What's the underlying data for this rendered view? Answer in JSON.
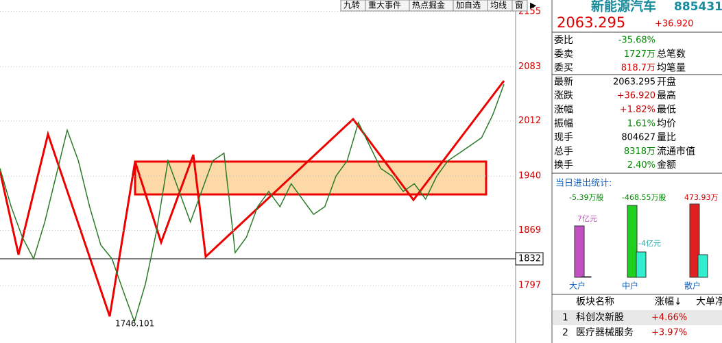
{
  "toolbar": [
    "九转",
    "重大事件",
    "热点掘金",
    "加自选",
    "均线",
    "窗"
  ],
  "quote": {
    "name": "新能源汽车",
    "code": "885431",
    "price": "2063.295",
    "change": "+36.920"
  },
  "rows": [
    {
      "label": "委比",
      "value": "-35.68%",
      "label2": ""
    },
    {
      "label": "委卖",
      "value": "1727万",
      "label2": "总笔数"
    },
    {
      "label": "委买",
      "value": "818.7万",
      "label2": "均笔量"
    },
    {
      "label": "最新",
      "value": "2063.295",
      "label2": "开盘"
    },
    {
      "label": "涨跌",
      "value": "+36.920",
      "label2": "最高"
    },
    {
      "label": "涨幅",
      "value": "+1.82%",
      "label2": "最低"
    },
    {
      "label": "振幅",
      "value": "1.61%",
      "label2": "均价"
    },
    {
      "label": "现手",
      "value": "804627",
      "label2": "量比"
    },
    {
      "label": "总手",
      "value": "8318万",
      "label2": "流通市值"
    },
    {
      "label": "换手",
      "value": "2.40%",
      "label2": "金额"
    }
  ],
  "flow": {
    "title": "当日进出统计:",
    "groups": [
      {
        "name": "大户",
        "volume": "-5.39万股",
        "amount": "7亿元"
      },
      {
        "name": "中户",
        "volume": "-468.55万股",
        "amount": "-4亿元"
      },
      {
        "name": "散户",
        "volume": "473.93万",
        "amount": ""
      }
    ]
  },
  "sectors": {
    "headers": [
      "板块名称",
      "涨幅↓",
      "大单净"
    ],
    "rows": [
      [
        "1",
        "科创次新股",
        "+4.66%"
      ],
      [
        "2",
        "医疗器械服务",
        "+3.97%"
      ]
    ]
  },
  "chart_data": {
    "type": "line",
    "ylim": [
      1722,
      2170
    ],
    "yticks": [
      2155,
      2083,
      2012,
      1940,
      1869,
      1797
    ],
    "marker": 1832,
    "low_label": "1746.101",
    "values": [
      1950,
      1900,
      1860,
      1832,
      1880,
      1940,
      2000,
      1960,
      1900,
      1850,
      1832,
      1790,
      1750,
      1800,
      1870,
      1960,
      1920,
      1880,
      1920,
      1960,
      1970,
      1840,
      1860,
      1900,
      1920,
      1900,
      1930,
      1910,
      1890,
      1900,
      1940,
      1960,
      2010,
      1980,
      1950,
      1940,
      1920,
      1930,
      1910,
      1940,
      1960,
      1970,
      1980,
      1990,
      2020,
      2060
    ]
  }
}
